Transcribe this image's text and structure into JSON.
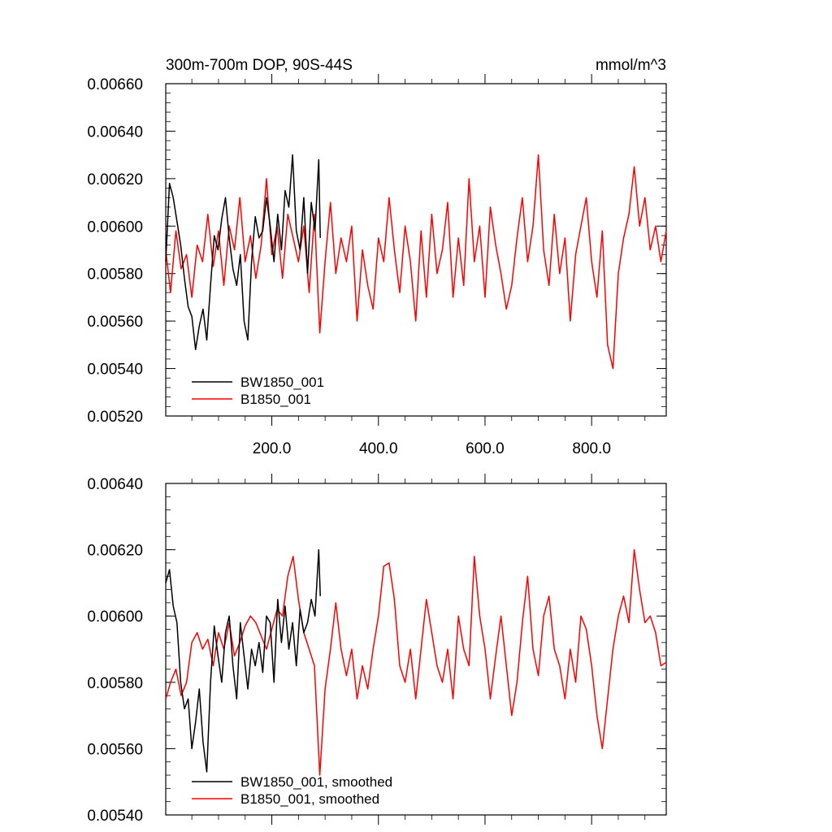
{
  "chart_data": [
    {
      "type": "line",
      "title": "300m-700m DOP, 90S-44S",
      "units_label": "mmol/m^3",
      "xlabel": "",
      "ylabel": "",
      "xlim": [
        1,
        940
      ],
      "ylim": [
        0.0052,
        0.0066
      ],
      "yticks": [
        0.0052,
        0.0054,
        0.0056,
        0.0058,
        0.006,
        0.0062,
        0.0064,
        0.0066
      ],
      "ytick_labels": [
        "0.00520",
        "0.00540",
        "0.00560",
        "0.00580",
        "0.00600",
        "0.00620",
        "0.00640",
        "0.00660"
      ],
      "xticks": [
        200,
        400,
        600,
        800
      ],
      "xtick_labels": [
        "200.0",
        "400.0",
        "600.0",
        "800.0"
      ],
      "legend": {
        "placement": "bottom-left"
      },
      "series": [
        {
          "name": "BW1850_001",
          "color": "#000000",
          "x": [
            1,
            8,
            15,
            22,
            29,
            36,
            43,
            50,
            57,
            64,
            71,
            78,
            85,
            92,
            99,
            106,
            113,
            120,
            127,
            134,
            141,
            148,
            155,
            162,
            169,
            176,
            183,
            190,
            197,
            204,
            211,
            218,
            225,
            232,
            239,
            246,
            253,
            260,
            267,
            274,
            281,
            288,
            291
          ],
          "values": [
            0.00585,
            0.00618,
            0.00612,
            0.00602,
            0.00592,
            0.00578,
            0.00566,
            0.00562,
            0.00548,
            0.00558,
            0.00565,
            0.00552,
            0.00575,
            0.00596,
            0.0059,
            0.00603,
            0.00612,
            0.00595,
            0.00582,
            0.00575,
            0.00588,
            0.0056,
            0.00552,
            0.00585,
            0.00604,
            0.00595,
            0.00598,
            0.00612,
            0.006,
            0.00585,
            0.00605,
            0.0059,
            0.00615,
            0.00608,
            0.0063,
            0.00598,
            0.0059,
            0.00612,
            0.0058,
            0.0061,
            0.00598,
            0.00628,
            0.00595
          ]
        },
        {
          "name": "B1850_001",
          "color": "#ff0000",
          "x": [
            1,
            10,
            20,
            30,
            40,
            50,
            60,
            70,
            80,
            90,
            100,
            110,
            120,
            130,
            140,
            150,
            160,
            170,
            180,
            190,
            200,
            210,
            220,
            230,
            240,
            250,
            260,
            270,
            280,
            290,
            300,
            310,
            320,
            330,
            340,
            350,
            360,
            370,
            380,
            390,
            400,
            410,
            420,
            430,
            440,
            450,
            460,
            470,
            480,
            490,
            500,
            510,
            520,
            530,
            540,
            550,
            560,
            570,
            580,
            590,
            600,
            610,
            620,
            630,
            640,
            650,
            660,
            670,
            680,
            690,
            700,
            710,
            720,
            730,
            740,
            750,
            760,
            770,
            780,
            790,
            800,
            810,
            820,
            830,
            840,
            850,
            860,
            870,
            880,
            890,
            900,
            910,
            920,
            930,
            940
          ],
          "values": [
            0.0059,
            0.00572,
            0.00598,
            0.00582,
            0.00588,
            0.0057,
            0.00592,
            0.00585,
            0.00605,
            0.00583,
            0.00598,
            0.00575,
            0.006,
            0.0059,
            0.00612,
            0.00585,
            0.00596,
            0.00578,
            0.00592,
            0.0062,
            0.00588,
            0.006,
            0.00578,
            0.00605,
            0.00595,
            0.00585,
            0.006,
            0.00572,
            0.00605,
            0.00555,
            0.00585,
            0.0061,
            0.0058,
            0.00595,
            0.00585,
            0.006,
            0.0056,
            0.0059,
            0.00575,
            0.00565,
            0.00595,
            0.00585,
            0.00612,
            0.0059,
            0.00572,
            0.006,
            0.00585,
            0.0056,
            0.00598,
            0.0057,
            0.00605,
            0.0058,
            0.0059,
            0.0061,
            0.0057,
            0.00595,
            0.00575,
            0.0062,
            0.00585,
            0.006,
            0.0057,
            0.00608,
            0.00592,
            0.0058,
            0.00565,
            0.00575,
            0.00595,
            0.00612,
            0.00585,
            0.006,
            0.0063,
            0.0059,
            0.00575,
            0.00605,
            0.0058,
            0.00595,
            0.0056,
            0.00588,
            0.006,
            0.00612,
            0.00585,
            0.0057,
            0.00598,
            0.0055,
            0.0054,
            0.0058,
            0.00595,
            0.00605,
            0.00625,
            0.006,
            0.00612,
            0.0059,
            0.006,
            0.00585,
            0.00598
          ]
        }
      ]
    },
    {
      "type": "line",
      "title": "",
      "xlabel": "",
      "ylabel": "",
      "xlim": [
        1,
        940
      ],
      "ylim": [
        0.0054,
        0.0064
      ],
      "yticks": [
        0.0054,
        0.0056,
        0.0058,
        0.006,
        0.0062,
        0.0064
      ],
      "ytick_labels": [
        "0.00540",
        "0.00560",
        "0.00580",
        "0.00600",
        "0.00620",
        "0.00640"
      ],
      "xticks": [
        200,
        400,
        600,
        800
      ],
      "xtick_labels": [],
      "legend": {
        "placement": "bottom-left"
      },
      "series": [
        {
          "name": "BW1850_001, smoothed",
          "color": "#000000",
          "x": [
            1,
            8,
            15,
            22,
            29,
            36,
            43,
            50,
            57,
            64,
            71,
            78,
            85,
            92,
            99,
            106,
            113,
            120,
            127,
            134,
            141,
            148,
            155,
            162,
            169,
            176,
            183,
            190,
            197,
            204,
            211,
            218,
            225,
            232,
            239,
            246,
            253,
            260,
            267,
            274,
            281,
            288,
            291
          ],
          "values": [
            0.0061,
            0.00614,
            0.00603,
            0.00598,
            0.0058,
            0.00572,
            0.00575,
            0.0056,
            0.00568,
            0.00578,
            0.00562,
            0.00553,
            0.0058,
            0.00597,
            0.00588,
            0.0058,
            0.00595,
            0.006,
            0.00585,
            0.00575,
            0.00598,
            0.00588,
            0.00578,
            0.0059,
            0.00585,
            0.00592,
            0.00583,
            0.006,
            0.00598,
            0.0058,
            0.00605,
            0.00592,
            0.00603,
            0.0059,
            0.00598,
            0.00585,
            0.00602,
            0.00595,
            0.00598,
            0.00605,
            0.006,
            0.0062,
            0.00606
          ]
        },
        {
          "name": "B1850_001, smoothed",
          "color": "#ff0000",
          "x": [
            1,
            10,
            20,
            30,
            40,
            50,
            60,
            70,
            80,
            90,
            100,
            110,
            120,
            130,
            140,
            150,
            160,
            170,
            180,
            190,
            200,
            210,
            220,
            230,
            240,
            250,
            260,
            270,
            280,
            290,
            300,
            310,
            320,
            330,
            340,
            350,
            360,
            370,
            380,
            390,
            400,
            410,
            420,
            430,
            440,
            450,
            460,
            470,
            480,
            490,
            500,
            510,
            520,
            530,
            540,
            550,
            560,
            570,
            580,
            590,
            600,
            610,
            620,
            630,
            640,
            650,
            660,
            670,
            680,
            690,
            700,
            710,
            720,
            730,
            740,
            750,
            760,
            770,
            780,
            790,
            800,
            810,
            820,
            830,
            840,
            850,
            860,
            870,
            880,
            890,
            900,
            910,
            920,
            930,
            940
          ],
          "values": [
            0.00575,
            0.0058,
            0.00584,
            0.00576,
            0.0058,
            0.00592,
            0.00595,
            0.0059,
            0.00593,
            0.00585,
            0.00595,
            0.0059,
            0.00598,
            0.00588,
            0.00592,
            0.00597,
            0.006,
            0.00598,
            0.00594,
            0.0059,
            0.00596,
            0.00602,
            0.006,
            0.00612,
            0.00618,
            0.00605,
            0.00595,
            0.0059,
            0.00585,
            0.00552,
            0.00578,
            0.0059,
            0.00604,
            0.0059,
            0.00582,
            0.0059,
            0.00575,
            0.00585,
            0.00578,
            0.0059,
            0.006,
            0.00615,
            0.00616,
            0.00605,
            0.00585,
            0.0058,
            0.0059,
            0.00575,
            0.0059,
            0.00605,
            0.00595,
            0.00585,
            0.0058,
            0.0059,
            0.00575,
            0.006,
            0.0059,
            0.00585,
            0.00618,
            0.006,
            0.0059,
            0.00575,
            0.00588,
            0.006,
            0.00585,
            0.0057,
            0.0058,
            0.00598,
            0.00612,
            0.0059,
            0.00582,
            0.006,
            0.00606,
            0.0059,
            0.00585,
            0.00575,
            0.0059,
            0.0058,
            0.006,
            0.00596,
            0.00585,
            0.0057,
            0.0056,
            0.00575,
            0.0059,
            0.006,
            0.00606,
            0.00598,
            0.0062,
            0.00608,
            0.00598,
            0.006,
            0.00595,
            0.00585,
            0.00586
          ]
        }
      ]
    }
  ]
}
